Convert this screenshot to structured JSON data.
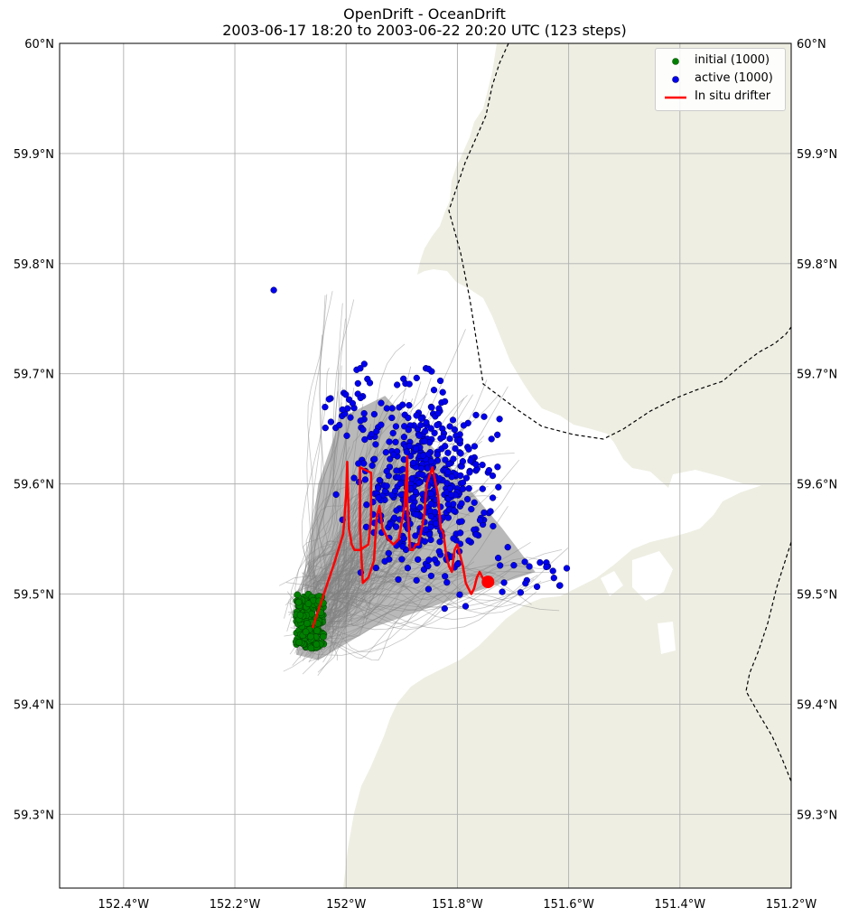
{
  "title": {
    "line1": "OpenDrift - OceanDrift",
    "line2": "2003-06-17 18:20 to 2003-06-22 20:20 UTC (123 steps)"
  },
  "legend": {
    "initial": "initial (1000)",
    "active": "active (1000)",
    "drifter": "In situ drifter"
  },
  "colors": {
    "land": "#eeeee3",
    "ocean": "#ffffff",
    "grid": "#b0b0b0",
    "trajectory": "#808080",
    "initial": "#008000",
    "active": "#0000ee",
    "drifter": "#ff0000",
    "boundary": "#000000"
  },
  "chart_data": {
    "type": "scatter",
    "map_projection": "PlateCarree",
    "xlim": [
      -152.515,
      -151.2
    ],
    "ylim": [
      59.233,
      60.0
    ],
    "x_ticks": [
      {
        "value": -152.4,
        "label": "152.4°W"
      },
      {
        "value": -152.2,
        "label": "152.2°W"
      },
      {
        "value": -152.0,
        "label": "152°W"
      },
      {
        "value": -151.8,
        "label": "151.8°W"
      },
      {
        "value": -151.6,
        "label": "151.6°W"
      },
      {
        "value": -151.4,
        "label": "151.4°W"
      },
      {
        "value": -151.2,
        "label": "151.2°W"
      }
    ],
    "y_ticks": [
      {
        "value": 59.3,
        "label": "59.3°N"
      },
      {
        "value": 59.4,
        "label": "59.4°N"
      },
      {
        "value": 59.5,
        "label": "59.5°N"
      },
      {
        "value": 59.6,
        "label": "59.6°N"
      },
      {
        "value": 59.7,
        "label": "59.7°N"
      },
      {
        "value": 59.8,
        "label": "59.8°N"
      },
      {
        "value": 59.9,
        "label": "59.9°N"
      },
      {
        "value": 60.0,
        "label": "60°N"
      }
    ],
    "grid": true,
    "legend_location": "top-right",
    "seeding_area": {
      "lon_range": [
        -152.09,
        -152.04
      ],
      "lat_range": [
        59.45,
        59.5
      ],
      "count": 1000
    },
    "active_cloud": {
      "lon_center": -151.86,
      "lat_center": 59.6,
      "lon_spread": 0.08,
      "lat_spread": 0.05,
      "count": 1000
    },
    "series": [
      {
        "name": "In situ drifter",
        "lon": [
          -152.06,
          -152.04,
          -152.02,
          -152.005,
          -152.0,
          -151.998,
          -151.995,
          -151.99,
          -151.985,
          -151.975,
          -151.96,
          -151.955,
          -151.955,
          -151.975,
          -151.975,
          -151.97,
          -151.96,
          -151.95,
          -151.945,
          -151.94,
          -151.935,
          -151.925,
          -151.915,
          -151.905,
          -151.895,
          -151.89,
          -151.89,
          -151.885,
          -151.88,
          -151.875,
          -151.87,
          -151.86,
          -151.855,
          -151.845,
          -151.835,
          -151.83,
          -151.825,
          -151.82,
          -151.815,
          -151.81,
          -151.805,
          -151.8,
          -151.795,
          -151.79,
          -151.785,
          -151.78,
          -151.775,
          -151.77,
          -151.765,
          -151.76,
          -151.75
        ],
        "lat": [
          59.47,
          59.5,
          59.53,
          59.555,
          59.59,
          59.62,
          59.56,
          59.545,
          59.54,
          59.54,
          59.545,
          59.57,
          59.61,
          59.615,
          59.56,
          59.51,
          59.515,
          59.53,
          59.57,
          59.58,
          59.56,
          59.55,
          59.545,
          59.55,
          59.58,
          59.625,
          59.58,
          59.54,
          59.54,
          59.545,
          59.545,
          59.57,
          59.6,
          59.615,
          59.59,
          59.56,
          59.555,
          59.535,
          59.525,
          59.52,
          59.54,
          59.545,
          59.535,
          59.525,
          59.51,
          59.505,
          59.5,
          59.505,
          59.515,
          59.52,
          59.51
        ]
      }
    ],
    "drifter_end": {
      "lon": -151.745,
      "lat": 59.511
    }
  }
}
